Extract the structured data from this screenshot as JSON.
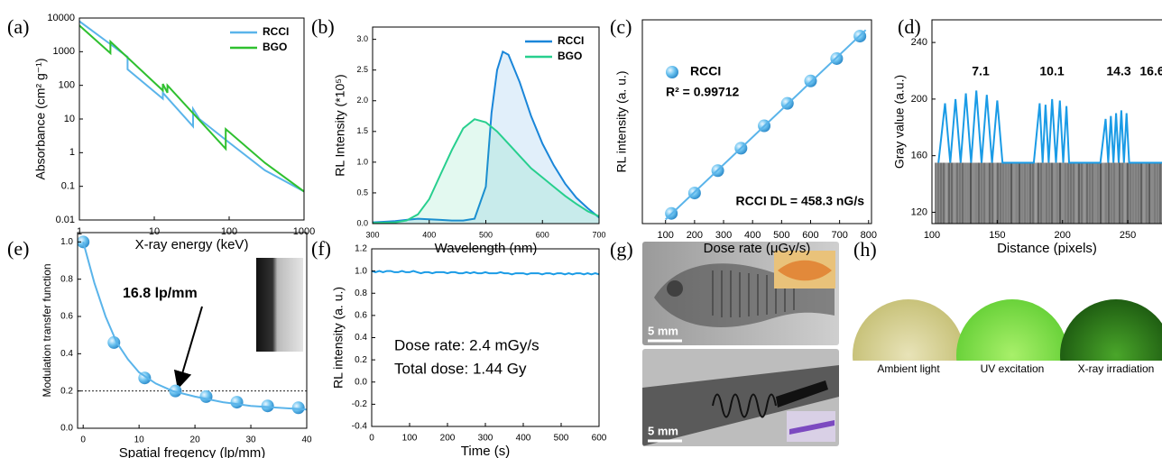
{
  "chart_data": [
    {
      "panel": "(a)",
      "type": "line",
      "xlabel": "X-ray energy (keV)",
      "ylabel": "Absorbance (cm² g⁻¹)",
      "xscale": "log",
      "yscale": "log",
      "xlim": [
        1,
        1000
      ],
      "ylim": [
        0.01,
        10000
      ],
      "xticks": [
        1,
        10,
        100,
        1000
      ],
      "yticks": [
        0.01,
        0.1,
        1,
        10,
        100,
        1000,
        10000
      ],
      "legend": "upper right",
      "series": [
        {
          "name": "RCCI",
          "color": "#5ab4ea",
          "x": [
            1,
            4.4,
            4.4,
            13,
            13,
            33,
            33,
            40,
            100,
            300,
            1000
          ],
          "values": [
            8000,
            700,
            300,
            40,
            60,
            6,
            20,
            10,
            2,
            0.3,
            0.07
          ]
        },
        {
          "name": "BGO",
          "color": "#2fc02f",
          "x": [
            1,
            2.6,
            2.6,
            13,
            13,
            15,
            15,
            90,
            90,
            300,
            1000
          ],
          "values": [
            6000,
            900,
            2000,
            70,
            110,
            60,
            100,
            1.3,
            5,
            0.5,
            0.07
          ]
        }
      ]
    },
    {
      "panel": "(b)",
      "type": "line",
      "xlabel": "Wavelength (nm)",
      "ylabel": "RL Intensity (*10⁵)",
      "xlim": [
        300,
        700
      ],
      "ylim": [
        0,
        3.2
      ],
      "xticks": [
        300,
        400,
        500,
        600,
        700
      ],
      "yticks": [
        {
          "value": 0,
          "label": "0.0"
        },
        0.5,
        {
          "value": 1,
          "label": "1.0"
        },
        1.5,
        {
          "value": 2,
          "label": "2.0"
        },
        2.5,
        {
          "value": 3,
          "label": "3.0"
        }
      ],
      "legend": "upper right",
      "fill": true,
      "series": [
        {
          "name": "RCCI",
          "color": "#1a86d9",
          "x": [
            300,
            320,
            340,
            360,
            380,
            400,
            420,
            440,
            460,
            480,
            500,
            510,
            520,
            530,
            540,
            560,
            580,
            600,
            620,
            640,
            660,
            680,
            700
          ],
          "values": [
            0.02,
            0.03,
            0.04,
            0.06,
            0.08,
            0.07,
            0.06,
            0.05,
            0.05,
            0.08,
            0.6,
            1.8,
            2.5,
            2.8,
            2.75,
            2.3,
            1.75,
            1.3,
            0.95,
            0.65,
            0.42,
            0.25,
            0.1
          ]
        },
        {
          "name": "BGO",
          "color": "#27cf8e",
          "x": [
            300,
            340,
            360,
            380,
            400,
            420,
            440,
            460,
            480,
            500,
            520,
            540,
            560,
            580,
            600,
            620,
            640,
            660,
            680,
            700
          ],
          "values": [
            0.01,
            0.02,
            0.05,
            0.15,
            0.4,
            0.8,
            1.2,
            1.55,
            1.7,
            1.65,
            1.5,
            1.3,
            1.1,
            0.9,
            0.75,
            0.6,
            0.45,
            0.32,
            0.2,
            0.12
          ]
        }
      ]
    },
    {
      "panel": "(c)",
      "type": "scatter",
      "xlabel": "Dose rate (μGy/s)",
      "ylabel": "RL intensity (a. u.)",
      "xlim": [
        20,
        810
      ],
      "ylim": [
        0,
        1
      ],
      "xticks": [
        100,
        200,
        300,
        400,
        500,
        600,
        700,
        800
      ],
      "legend": "upper left",
      "annotations": [
        "R² = 0.99712",
        "RCCI DL = 458.3 nG/s"
      ],
      "series": [
        {
          "name": "RCCI",
          "color": "#5ab4ea",
          "x": [
            120,
            200,
            280,
            360,
            440,
            520,
            600,
            690,
            770
          ],
          "values": [
            0.05,
            0.15,
            0.26,
            0.37,
            0.48,
            0.59,
            0.7,
            0.81,
            0.92
          ]
        },
        {
          "type": "line",
          "color": "#5ab4ea",
          "x": [
            100,
            790
          ],
          "values": [
            0.02,
            0.95
          ]
        }
      ]
    },
    {
      "panel": "(d)",
      "type": "line",
      "xlabel": "Distance (pixels)",
      "ylabel": "Gray value (a.u.)",
      "xlim": [
        100,
        290
      ],
      "ylim": [
        112,
        256
      ],
      "xticks": [
        100,
        150,
        200,
        250
      ],
      "yticks": [
        120,
        160,
        200,
        240
      ],
      "annotations": [
        "7.1",
        "10.1",
        "14.3",
        "16.6"
      ],
      "series": [
        {
          "color": "#1a9be6",
          "x": [
            105,
            110,
            114,
            118,
            122,
            126,
            130,
            134,
            138,
            142,
            146,
            150,
            154,
            178,
            182.5,
            184.8,
            187,
            189.4,
            192,
            195,
            198,
            200.5,
            203,
            205,
            229,
            233,
            235,
            237,
            239,
            241,
            243,
            245,
            247,
            249,
            251,
            278,
            281,
            282.5,
            284,
            285.5,
            287,
            288.5,
            290
          ],
          "values": [
            155,
            197,
            155,
            200,
            155,
            204,
            155,
            206,
            155,
            203,
            155,
            199,
            155,
            155,
            197,
            155,
            196,
            155,
            200,
            155,
            199,
            155,
            195,
            155,
            155,
            186,
            155,
            188,
            155,
            190,
            155,
            192,
            155,
            190,
            155,
            155,
            174,
            155,
            172,
            155,
            168,
            155,
            165
          ]
        }
      ]
    },
    {
      "panel": "(e)",
      "type": "scatter",
      "xlabel": "Spatial fregency (lp/mm)",
      "ylabel": "Modulation transfer function",
      "xlim": [
        -1,
        40
      ],
      "ylim": [
        0,
        1.05
      ],
      "xticks": [
        0,
        10,
        20,
        30,
        40
      ],
      "yticks": [
        {
          "value": 0,
          "label": "0.0"
        },
        0.2,
        0.4,
        0.6,
        0.8,
        {
          "value": 1,
          "label": "1.0"
        }
      ],
      "threshold": 0.2,
      "annotations": [
        "16.8 lp/mm"
      ],
      "series": [
        {
          "color": "#5ab4ea",
          "x": [
            0,
            5.5,
            11,
            16.5,
            22,
            27.5,
            33,
            38.5
          ],
          "values": [
            1.0,
            0.46,
            0.27,
            0.2,
            0.17,
            0.14,
            0.12,
            0.11
          ]
        },
        {
          "type": "line",
          "color": "#5ab4ea",
          "x": [
            0,
            2,
            4,
            6,
            8,
            10,
            13,
            16,
            20,
            25,
            30,
            35,
            40
          ],
          "values": [
            1.0,
            0.78,
            0.6,
            0.46,
            0.37,
            0.3,
            0.24,
            0.2,
            0.17,
            0.14,
            0.12,
            0.11,
            0.1
          ]
        }
      ]
    },
    {
      "panel": "(f)",
      "type": "line",
      "xlabel": "Time (s)",
      "ylabel": "RL intensity (a. u.)",
      "xlim": [
        0,
        600
      ],
      "ylim": [
        -0.4,
        1.2
      ],
      "xticks": [
        0,
        100,
        200,
        300,
        400,
        500,
        600
      ],
      "yticks": [
        -0.4,
        -0.2,
        {
          "value": 0,
          "label": "0.0"
        },
        0.2,
        0.4,
        0.6,
        0.8,
        {
          "value": 1,
          "label": "1.0"
        },
        1.2
      ],
      "annotations": [
        "Dose rate: 2.4 mGy/s",
        "Total dose: 1.44 Gy"
      ],
      "series": [
        {
          "color": "#1a9be6",
          "x": [
            0,
            10,
            20,
            30,
            40,
            50,
            60,
            70,
            80,
            90,
            100,
            110,
            120,
            130,
            140,
            150,
            160,
            170,
            180,
            190,
            200,
            210,
            220,
            230,
            240,
            250,
            260,
            270,
            280,
            290,
            300,
            310,
            320,
            330,
            340,
            350,
            360,
            370,
            380,
            390,
            400,
            410,
            420,
            430,
            440,
            450,
            460,
            470,
            480,
            490,
            500,
            510,
            520,
            530,
            540,
            550,
            560,
            570,
            580,
            590,
            600
          ],
          "values": [
            1.0,
            0.99,
            1.0,
            0.99,
            1.0,
            1.0,
            0.99,
            0.99,
            1.0,
            0.99,
            0.99,
            1.0,
            0.99,
            0.98,
            0.99,
            0.99,
            0.98,
            0.99,
            0.99,
            0.99,
            0.98,
            0.99,
            0.99,
            0.98,
            0.98,
            0.99,
            0.98,
            0.99,
            0.98,
            0.98,
            0.99,
            0.98,
            0.98,
            0.98,
            0.99,
            0.98,
            0.98,
            0.97,
            0.98,
            0.98,
            0.98,
            0.97,
            0.98,
            0.98,
            0.98,
            0.97,
            0.98,
            0.98,
            0.97,
            0.98,
            0.98,
            0.97,
            0.98,
            0.97,
            0.98,
            0.98,
            0.97,
            0.98,
            0.97,
            0.98,
            0.97
          ]
        }
      ]
    }
  ],
  "images": {
    "g": {
      "panel": "(g)",
      "scale_bars": [
        "5 mm",
        "5 mm"
      ]
    },
    "h": {
      "panel": "(h)",
      "captions": [
        "Ambient light",
        "UV excitation",
        "X-ray irradiation"
      ]
    }
  }
}
